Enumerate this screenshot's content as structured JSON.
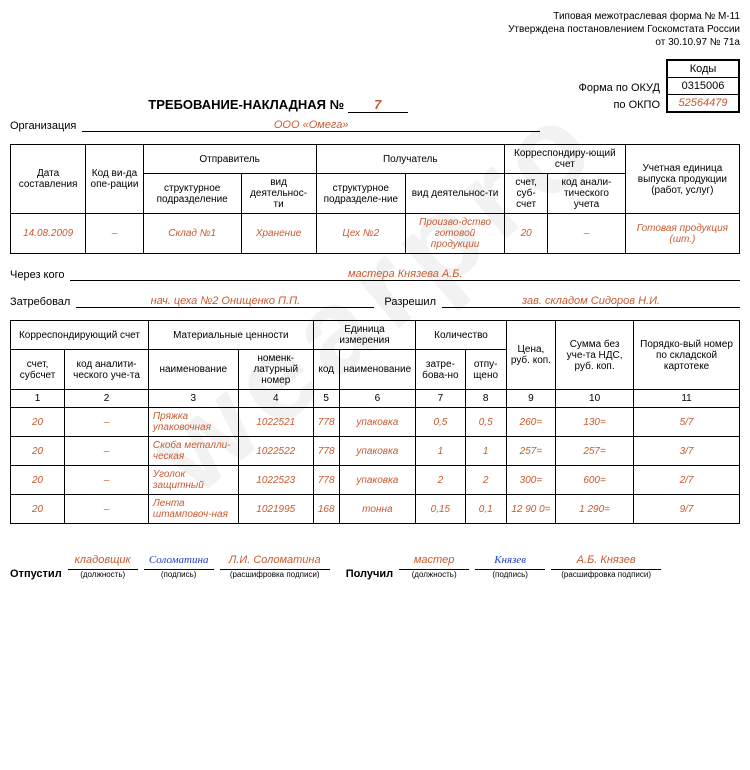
{
  "form_header": {
    "line1": "Типовая межотраслевая форма № М-11",
    "line2": "Утверждена постановлением Госкомстата России",
    "line3": "от 30.10.97 № 71а"
  },
  "title": "ТРЕБОВАНИЕ-НАКЛАДНАЯ №",
  "doc_number": "7",
  "code_box": {
    "head": "Коды",
    "okud_label": "Форма по ОКУД",
    "okud": "0315006",
    "okpo_label": "по ОКПО",
    "okpo": "52564479"
  },
  "org_label": "Организация",
  "org_value": "ООО «Омега»",
  "header_table": {
    "cols": {
      "date": "Дата составления",
      "op_code": "Код ви-да опе-рации",
      "sender": "Отправитель",
      "recipient": "Получатель",
      "corr": "Корреспондиру-ющий счет",
      "unit": "Учетная единица выпуска продукции (работ, услуг)",
      "struct": "структурное подразделение",
      "activity": "вид деятельнос-ти",
      "struct2": "структурное подразделе-ние",
      "activity2": "вид деятельнос-ти",
      "acct": "счет, суб-счет",
      "anal": "код анали-тического учета"
    },
    "row": {
      "date": "14.08.2009",
      "op": "–",
      "sender_struct": "Склад №1",
      "sender_act": "Хранение",
      "recv_struct": "Цех №2",
      "recv_act": "Произво-дство готовой продукции",
      "acct": "20",
      "anal": "–",
      "unit": "Готовая продукция (шт.)"
    }
  },
  "through_label": "Через кого",
  "through_value": "мастера Князева А.Б.",
  "requested_label": "Затребовал",
  "requested_value": "нач. цеха №2 Онищенко П.П.",
  "allowed_label": "Разрешил",
  "allowed_value": "зав. складом Сидоров Н.И.",
  "main_table": {
    "headers": {
      "corr": "Корреспондирующий счет",
      "mat": "Материальные ценности",
      "unit": "Единица измерения",
      "qty": "Количество",
      "price": "Цена, руб. коп.",
      "sum": "Сумма без уче-та НДС, руб. коп.",
      "ordnum": "Порядко-вый номер по складской картотеке",
      "acct": "счет, субсчет",
      "anal": "код аналити-ческого уче-та",
      "name": "наименование",
      "nomen": "номенк-латурный номер",
      "code": "код",
      "unitname": "наименование",
      "req": "затре-бова-но",
      "rel": "отпу-щено"
    },
    "colnums": [
      "1",
      "2",
      "3",
      "4",
      "5",
      "6",
      "7",
      "8",
      "9",
      "10",
      "11"
    ],
    "rows": [
      {
        "acct": "20",
        "anal": "–",
        "name": "Пряжка упаковочная",
        "nomen": "1022521",
        "code": "778",
        "unit": "упаковка",
        "req": "0,5",
        "rel": "0,5",
        "price": "260=",
        "sum": "130=",
        "ord": "5/7"
      },
      {
        "acct": "20",
        "anal": "–",
        "name": "Скоба металли-ческая",
        "nomen": "1022522",
        "code": "778",
        "unit": "упаковка",
        "req": "1",
        "rel": "1",
        "price": "257=",
        "sum": "257=",
        "ord": "3/7"
      },
      {
        "acct": "20",
        "anal": "–",
        "name": "Уголок защитный",
        "nomen": "1022523",
        "code": "778",
        "unit": "упаковка",
        "req": "2",
        "rel": "2",
        "price": "300=",
        "sum": "600=",
        "ord": "2/7"
      },
      {
        "acct": "20",
        "anal": "–",
        "name": "Лента штамповоч-ная",
        "nomen": "1021995",
        "code": "168",
        "unit": "тонна",
        "req": "0,15",
        "rel": "0,1",
        "price": "12 90 0=",
        "sum": "1 290=",
        "ord": "9/7"
      }
    ]
  },
  "sign": {
    "released": "Отпустил",
    "received": "Получил",
    "pos1": "кладовщик",
    "sig1": "Соломатина",
    "dec1": "Л.И. Соломатина",
    "pos2": "мастер",
    "sig2": "Князев",
    "dec2": "А.Б. Князев",
    "sub_pos": "(должность)",
    "sub_sig": "(подпись)",
    "sub_dec": "(расшифровка подписи)"
  }
}
